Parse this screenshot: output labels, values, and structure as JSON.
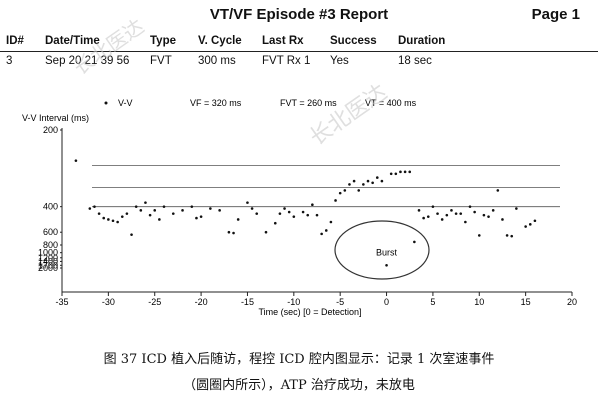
{
  "report": {
    "title": "VT/VF Episode #3 Report",
    "page": "Page 1"
  },
  "table": {
    "headers": [
      "ID#",
      "Date/Time",
      "Type",
      "V. Cycle",
      "Last Rx",
      "Success",
      "Duration"
    ],
    "row": [
      "3",
      "Sep 20 21 39 56",
      "FVT",
      "300 ms",
      "FVT Rx 1",
      "Yes",
      "18 sec"
    ]
  },
  "watermark": "长北医达",
  "chart_data": {
    "type": "scatter",
    "title": "",
    "xlabel": "Time (sec)    [0 = Detection]",
    "ylabel": "V-V Interval (ms)",
    "xlim": [
      -35,
      20
    ],
    "xticks": [
      -35,
      -30,
      -25,
      -20,
      -15,
      -10,
      -5,
      0,
      5,
      10,
      15,
      20
    ],
    "yticks": [
      200,
      400,
      600,
      800,
      1000,
      1200,
      1400,
      1700,
      2000
    ],
    "y_scale": "reciprocal",
    "legend": {
      "series_label": "V-V",
      "vf": "VF = 320 ms",
      "fvt": "FVT = 260 ms",
      "vt": "VT = 400 ms"
    },
    "zone_lines_ms": [
      400,
      320,
      260
    ],
    "annotation": {
      "text": "Burst",
      "x": 0,
      "y": 1700
    },
    "series": [
      {
        "points": [
          [
            -33.5,
            250
          ],
          [
            -32,
            410
          ],
          [
            -31.5,
            400
          ],
          [
            -31,
            440
          ],
          [
            -30.5,
            470
          ],
          [
            -30,
            480
          ],
          [
            -29.5,
            490
          ],
          [
            -29,
            500
          ],
          [
            -28.5,
            460
          ],
          [
            -28,
            440
          ],
          [
            -27.5,
            630
          ],
          [
            -27,
            400
          ],
          [
            -26.5,
            420
          ],
          [
            -26,
            380
          ],
          [
            -25.5,
            450
          ],
          [
            -25,
            420
          ],
          [
            -24.5,
            480
          ],
          [
            -24,
            400
          ],
          [
            -23,
            440
          ],
          [
            -22,
            420
          ],
          [
            -21,
            400
          ],
          [
            -20.5,
            470
          ],
          [
            -20,
            460
          ],
          [
            -19,
            410
          ],
          [
            -18,
            420
          ],
          [
            -17,
            600
          ],
          [
            -16.5,
            610
          ],
          [
            -16,
            480
          ],
          [
            -15,
            380
          ],
          [
            -14.5,
            410
          ],
          [
            -14,
            440
          ],
          [
            -13,
            600
          ],
          [
            -12,
            510
          ],
          [
            -11.5,
            440
          ],
          [
            -11,
            410
          ],
          [
            -10.5,
            430
          ],
          [
            -10,
            460
          ],
          [
            -9,
            430
          ],
          [
            -8.5,
            450
          ],
          [
            -8,
            390
          ],
          [
            -7.5,
            450
          ],
          [
            -7,
            620
          ],
          [
            -6.5,
            580
          ],
          [
            -6,
            500
          ],
          [
            -5.5,
            370
          ],
          [
            -5,
            340
          ],
          [
            -4.5,
            330
          ],
          [
            -4,
            310
          ],
          [
            -3.5,
            300
          ],
          [
            -3,
            330
          ],
          [
            -2.5,
            310
          ],
          [
            -2,
            300
          ],
          [
            -1.5,
            305
          ],
          [
            -1,
            290
          ],
          [
            -0.5,
            300
          ],
          [
            0,
            1700
          ],
          [
            0.5,
            280
          ],
          [
            1,
            280
          ],
          [
            1.5,
            275
          ],
          [
            2,
            275
          ],
          [
            2.5,
            275
          ],
          [
            3,
            740
          ],
          [
            3.5,
            420
          ],
          [
            4,
            470
          ],
          [
            4.5,
            460
          ],
          [
            5,
            400
          ],
          [
            5.5,
            440
          ],
          [
            6,
            480
          ],
          [
            6.5,
            450
          ],
          [
            7,
            420
          ],
          [
            7.5,
            440
          ],
          [
            8,
            440
          ],
          [
            8.5,
            500
          ],
          [
            9,
            400
          ],
          [
            9.5,
            430
          ],
          [
            10,
            640
          ],
          [
            10.5,
            450
          ],
          [
            11,
            460
          ],
          [
            11.5,
            420
          ],
          [
            12,
            330
          ],
          [
            12.5,
            480
          ],
          [
            13,
            640
          ],
          [
            13.5,
            650
          ],
          [
            14,
            410
          ],
          [
            15,
            540
          ],
          [
            15.5,
            520
          ],
          [
            16,
            490
          ]
        ]
      }
    ]
  },
  "caption": {
    "line1": "图 37    ICD 植入后随访，程控 ICD 腔内图显示：记录 1 次室速事件",
    "line2": "（圆圈内所示），ATP 治疗成功，未放电"
  }
}
